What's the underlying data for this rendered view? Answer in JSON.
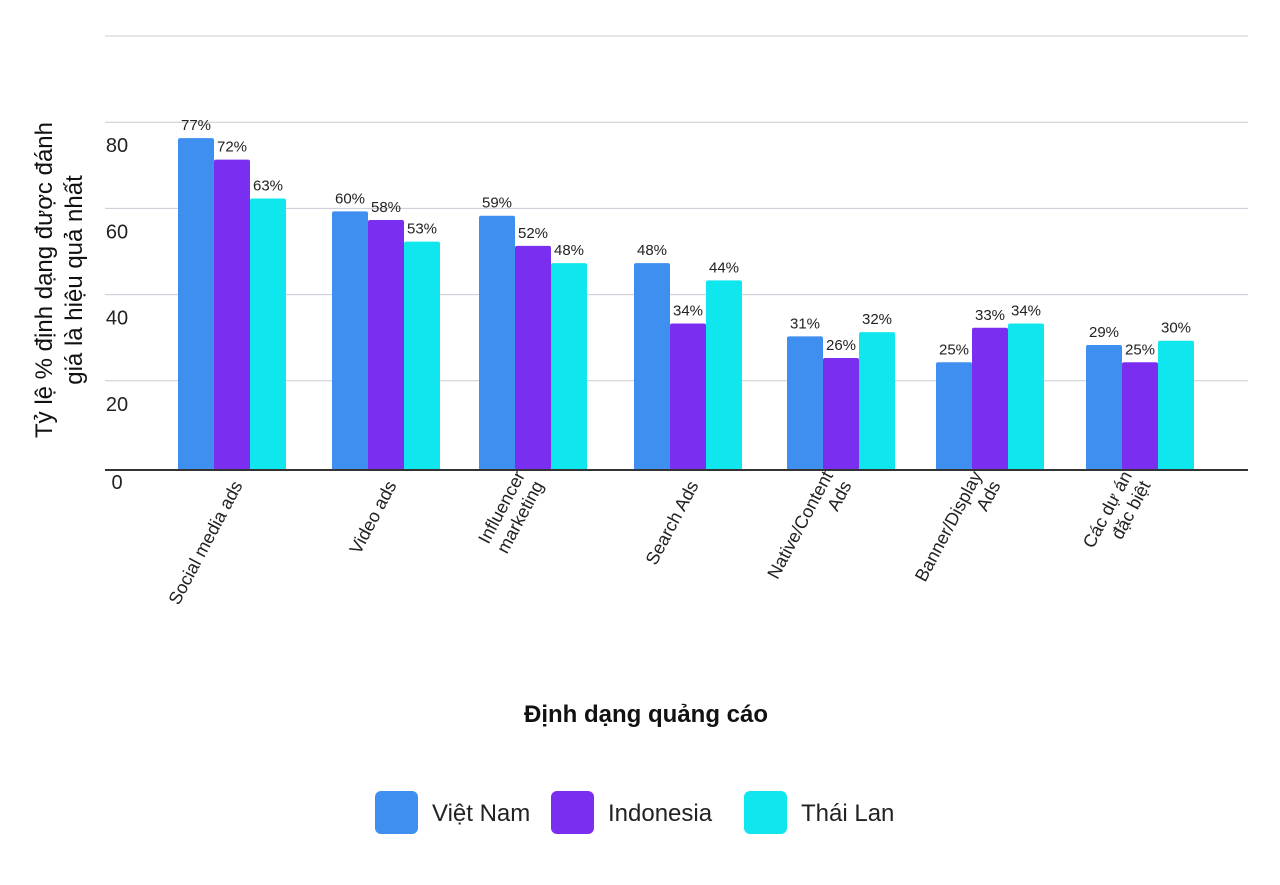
{
  "chart_data": {
    "type": "bar",
    "title": "",
    "xlabel": "Định dạng quảng cáo",
    "ylabel_lines": [
      "Tỷ lệ % định dạng được đánh",
      "giá là hiệu quả nhất"
    ],
    "categories": [
      [
        "Social media ads"
      ],
      [
        "Video ads"
      ],
      [
        "Influencer",
        "marketing"
      ],
      [
        "Search Ads"
      ],
      [
        "Native/Content",
        "Ads"
      ],
      [
        "Banner/Display",
        "Ads"
      ],
      [
        "Các dự án",
        "đặc biệt"
      ]
    ],
    "series": [
      {
        "name": "Việt Nam",
        "color": "#3f8ff0",
        "values": [
          77,
          60,
          59,
          48,
          31,
          25,
          29
        ]
      },
      {
        "name": "Indonesia",
        "color": "#7a2ff0",
        "values": [
          72,
          58,
          52,
          34,
          26,
          33,
          25
        ]
      },
      {
        "name": "Thái Lan",
        "color": "#10e6ee",
        "values": [
          63,
          53,
          48,
          44,
          32,
          34,
          30
        ]
      }
    ],
    "data_labels": [
      [
        "77%",
        "60%",
        "59%",
        "48%",
        "31%",
        "25%",
        "29%"
      ],
      [
        "72%",
        "58%",
        "52%",
        "34%",
        "26%",
        "33%",
        "25%"
      ],
      [
        "63%",
        "53%",
        "48%",
        "44%",
        "32%",
        "34%",
        "30%"
      ]
    ],
    "yticks": [
      {
        "value": 0,
        "label": "0"
      },
      {
        "value": 20,
        "label": "20"
      },
      {
        "value": 40,
        "label": "40"
      },
      {
        "value": 60,
        "label": "60"
      },
      {
        "value": 80,
        "label": "80"
      }
    ],
    "gridlines": [
      20,
      40,
      60,
      80,
      100
    ],
    "ylim": [
      0,
      100
    ],
    "grid": true,
    "legend_position": "bottom"
  }
}
